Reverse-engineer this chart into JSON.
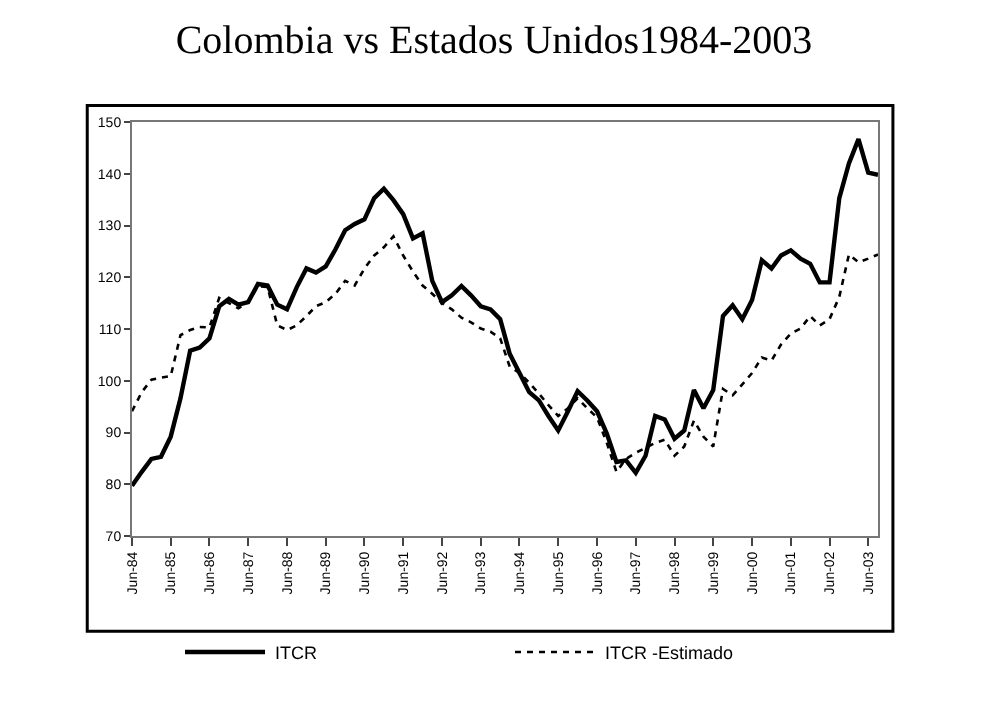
{
  "chart_data": {
    "type": "line",
    "title": "Colombia vs Estados Unidos1984-2003",
    "x": [
      "1984-06",
      "1984-09",
      "1984-12",
      "1985-03",
      "1985-06",
      "1985-09",
      "1985-12",
      "1986-03",
      "1986-06",
      "1986-09",
      "1986-12",
      "1987-03",
      "1987-06",
      "1987-09",
      "1987-12",
      "1988-03",
      "1988-06",
      "1988-09",
      "1988-12",
      "1989-03",
      "1989-06",
      "1989-09",
      "1989-12",
      "1990-03",
      "1990-06",
      "1990-09",
      "1990-12",
      "1991-03",
      "1991-06",
      "1991-09",
      "1991-12",
      "1992-03",
      "1992-06",
      "1992-09",
      "1992-12",
      "1993-03",
      "1993-06",
      "1993-09",
      "1993-12",
      "1994-03",
      "1994-06",
      "1994-09",
      "1994-12",
      "1995-03",
      "1995-06",
      "1995-09",
      "1995-12",
      "1996-03",
      "1996-06",
      "1996-09",
      "1996-12",
      "1997-03",
      "1997-06",
      "1997-09",
      "1997-12",
      "1998-03",
      "1998-06",
      "1998-09",
      "1998-12",
      "1999-03",
      "1999-06",
      "1999-09",
      "1999-12",
      "2000-03",
      "2000-06",
      "2000-09",
      "2000-12",
      "2001-03",
      "2001-06",
      "2001-09",
      "2001-12",
      "2002-03",
      "2002-06",
      "2002-09",
      "2002-12",
      "2003-03",
      "2003-06",
      "2003-09"
    ],
    "series": [
      {
        "name": "ITCR",
        "color": "#000000",
        "line_style": "solid",
        "values": [
          79.7,
          82.4,
          84.9,
          85.3,
          89.2,
          96.6,
          105.8,
          106.4,
          108.2,
          114.4,
          115.8,
          114.7,
          115.2,
          118.7,
          118.4,
          114.7,
          113.8,
          118.1,
          121.7,
          120.9,
          122.1,
          125.4,
          129.1,
          130.3,
          131.2,
          135.3,
          137.1,
          134.9,
          132.2,
          127.5,
          128.5,
          119.3,
          115.2,
          116.5,
          118.3,
          116.5,
          114.4,
          113.8,
          111.9,
          105.2,
          101.5,
          97.8,
          96.2,
          93.2,
          90.4,
          94.1,
          98.0,
          96.2,
          94.1,
          89.8,
          84.3,
          84.6,
          82.2,
          85.5,
          93.2,
          92.5,
          88.8,
          90.4,
          98.2,
          94.7,
          98.2,
          112.5,
          114.6,
          111.9,
          115.6,
          123.3,
          121.7,
          124.2,
          125.2,
          123.6,
          122.6,
          119.0,
          119.0,
          135.3,
          142.0,
          146.7,
          140.2,
          139.8
        ]
      },
      {
        "name": "ITCR -Estimado",
        "color": "#000000",
        "line_style": "dotted",
        "values": [
          94.1,
          97.8,
          100.2,
          100.6,
          100.9,
          108.8,
          109.8,
          110.4,
          110.3,
          116.0,
          115.0,
          114.0,
          115.2,
          118.3,
          118.1,
          110.7,
          109.8,
          110.7,
          112.5,
          114.4,
          115.2,
          116.8,
          119.3,
          118.4,
          121.7,
          124.2,
          125.8,
          127.9,
          124.2,
          121.1,
          118.4,
          116.8,
          115.0,
          113.8,
          112.2,
          111.3,
          110.1,
          109.5,
          108.2,
          102.7,
          101.5,
          99.6,
          97.5,
          95.3,
          93.2,
          94.7,
          96.6,
          94.7,
          92.9,
          88.0,
          82.4,
          84.9,
          86.1,
          87.0,
          88.0,
          88.6,
          85.5,
          87.3,
          92.3,
          89.2,
          87.3,
          98.4,
          97.2,
          99.3,
          101.5,
          104.5,
          103.9,
          107.0,
          109.1,
          110.1,
          112.5,
          110.7,
          111.9,
          116.2,
          124.4,
          122.9,
          123.6,
          124.4
        ]
      }
    ],
    "xlim": [
      "1984-06",
      "2003-09"
    ],
    "xticks": [
      {
        "value": "1984-06",
        "label": "Jun-84"
      },
      {
        "value": "1985-06",
        "label": "Jun-85"
      },
      {
        "value": "1986-06",
        "label": "Jun-86"
      },
      {
        "value": "1987-06",
        "label": "Jun-87"
      },
      {
        "value": "1988-06",
        "label": "Jun-88"
      },
      {
        "value": "1989-06",
        "label": "Jun-89"
      },
      {
        "value": "1990-06",
        "label": "Jun-90"
      },
      {
        "value": "1991-06",
        "label": "Jun-91"
      },
      {
        "value": "1992-06",
        "label": "Jun-92"
      },
      {
        "value": "1993-06",
        "label": "Jun-93"
      },
      {
        "value": "1994-06",
        "label": "Jun-94"
      },
      {
        "value": "1995-06",
        "label": "Jun-95"
      },
      {
        "value": "1996-06",
        "label": "Jun-96"
      },
      {
        "value": "1997-06",
        "label": "Jun-97"
      },
      {
        "value": "1998-06",
        "label": "Jun-98"
      },
      {
        "value": "1999-06",
        "label": "Jun-99"
      },
      {
        "value": "2000-06",
        "label": "Jun-00"
      },
      {
        "value": "2001-06",
        "label": "Jun-01"
      },
      {
        "value": "2002-06",
        "label": "Jun-02"
      },
      {
        "value": "2003-06",
        "label": "Jun-03"
      }
    ],
    "ylim": [
      70,
      150
    ],
    "yticks": [
      70,
      80,
      90,
      100,
      110,
      120,
      130,
      140,
      150
    ],
    "grid": false,
    "legend": "bottom",
    "marker": "none"
  }
}
